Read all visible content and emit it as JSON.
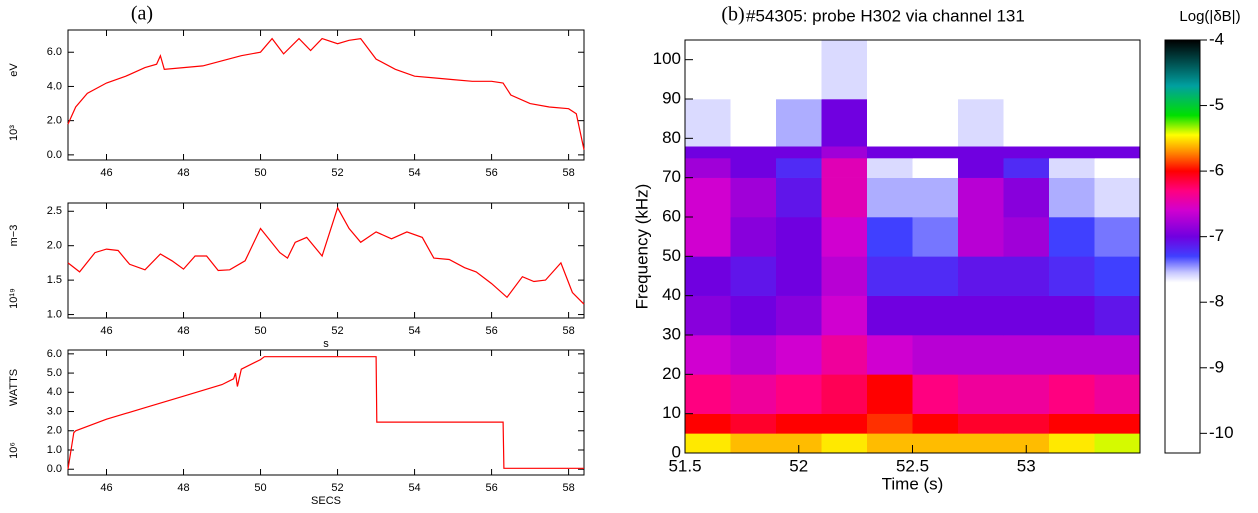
{
  "chart_data": [
    {
      "type": "line",
      "panel_label": "(a)",
      "y_scale": "10³",
      "y_label": "eV",
      "color": "#ff0000",
      "x": [
        45,
        45.2,
        45.5,
        46,
        46.5,
        47,
        47.3,
        47.4,
        47.5,
        48,
        48.5,
        49,
        49.5,
        50,
        50.3,
        50.6,
        51,
        51.3,
        51.6,
        52,
        52.3,
        52.6,
        53,
        53.5,
        54,
        54.5,
        55,
        55.5,
        56,
        56.3,
        56.5,
        57,
        57.5,
        58,
        58.2,
        58.4
      ],
      "values": [
        1.8,
        2.8,
        3.6,
        4.2,
        4.6,
        5.1,
        5.3,
        5.8,
        5.0,
        5.1,
        5.2,
        5.5,
        5.8,
        6.0,
        6.8,
        5.9,
        6.8,
        6.1,
        6.8,
        6.5,
        6.7,
        6.8,
        5.6,
        5.0,
        4.6,
        4.5,
        4.4,
        4.3,
        4.3,
        4.2,
        3.5,
        3.0,
        2.8,
        2.7,
        2.4,
        0.3
      ],
      "xlim": [
        45,
        58.4
      ],
      "xticks": [
        46,
        48,
        50,
        52,
        54,
        56,
        58
      ],
      "ylim": [
        -0.3,
        7.3
      ],
      "yticks": [
        {
          "value": 0,
          "label": "0.0"
        },
        {
          "value": 2,
          "label": "2.0"
        },
        {
          "value": 4,
          "label": "4.0"
        },
        {
          "value": 6,
          "label": "6.0"
        }
      ]
    },
    {
      "type": "line",
      "x_label": "s",
      "y_scale": "10¹⁹",
      "y_label": "m−3",
      "color": "#ff0000",
      "x": [
        45,
        45.3,
        45.7,
        46,
        46.3,
        46.6,
        47,
        47.4,
        47.7,
        48,
        48.3,
        48.6,
        48.9,
        49.2,
        49.6,
        50,
        50.5,
        50.7,
        50.9,
        51.2,
        51.6,
        52,
        52.3,
        52.6,
        53,
        53.4,
        53.8,
        54.2,
        54.5,
        54.9,
        55.3,
        55.6,
        56,
        56.4,
        56.8,
        57.1,
        57.4,
        57.8,
        58.1,
        58.4
      ],
      "values": [
        1.75,
        1.62,
        1.9,
        1.95,
        1.93,
        1.73,
        1.65,
        1.88,
        1.78,
        1.66,
        1.85,
        1.85,
        1.64,
        1.65,
        1.78,
        2.25,
        1.9,
        1.82,
        2.05,
        2.12,
        1.85,
        2.55,
        2.25,
        2.05,
        2.2,
        2.1,
        2.2,
        2.12,
        1.82,
        1.8,
        1.68,
        1.62,
        1.45,
        1.25,
        1.55,
        1.48,
        1.5,
        1.75,
        1.32,
        1.15
      ],
      "xlim": [
        45,
        58.4
      ],
      "xticks": [
        46,
        48,
        50,
        52,
        54,
        56,
        58
      ],
      "ylim": [
        0.95,
        2.62
      ],
      "yticks": [
        {
          "value": 1,
          "label": "1.0"
        },
        1.5,
        {
          "value": 2,
          "label": "2.0"
        },
        2.5
      ]
    },
    {
      "type": "line",
      "x_label": "SECS",
      "y_scale": "10⁶",
      "y_label": "WATTS",
      "color": "#ff0000",
      "x": [
        45,
        45.15,
        45.2,
        46,
        47,
        48,
        49,
        49.3,
        49.35,
        49.4,
        49.5,
        50,
        50.1,
        52,
        53,
        53.02,
        55,
        56.3,
        56.32,
        58.4
      ],
      "values": [
        0,
        1.9,
        2.0,
        2.6,
        3.2,
        3.8,
        4.4,
        4.7,
        5.0,
        4.3,
        5.2,
        5.7,
        5.85,
        5.85,
        5.85,
        2.45,
        2.45,
        2.45,
        0.05,
        0.05
      ],
      "xlim": [
        45,
        58.4
      ],
      "xticks": [
        46,
        48,
        50,
        52,
        54,
        56,
        58
      ],
      "ylim": [
        -0.3,
        6.2
      ],
      "yticks": [
        {
          "value": 0,
          "label": "0.0"
        },
        {
          "value": 1,
          "label": "1.0"
        },
        {
          "value": 2,
          "label": "2.0"
        },
        {
          "value": 3,
          "label": "3.0"
        },
        {
          "value": 4,
          "label": "4.0"
        },
        {
          "value": 5,
          "label": "5.0"
        },
        {
          "value": 6,
          "label": "6.0"
        }
      ]
    },
    {
      "type": "heatmap",
      "panel_label": "(b)",
      "title": "#54305: probe H302 via channel 131",
      "x_label": "Time (s)",
      "y_label": "Frequency (kHz)",
      "colorbar_label": "Log(|δB|)",
      "xlim": [
        51.5,
        53.5
      ],
      "xticks": [
        51.5,
        52,
        52.5,
        53
      ],
      "ylim": [
        0,
        105
      ],
      "yticks": [
        0,
        10,
        20,
        30,
        40,
        50,
        60,
        70,
        80,
        90,
        100
      ],
      "zlim": [
        -10.3,
        -4
      ],
      "zticks": [
        -10,
        -9,
        -8,
        -7,
        -6,
        -5,
        -4
      ],
      "colorscale": [
        {
          "value": -10.3,
          "color": "#ffffff"
        },
        {
          "value": -7.7,
          "color": "#ffffff"
        },
        {
          "value": -7.55,
          "color": "#c8c8ff"
        },
        {
          "value": -7.3,
          "color": "#4040ff"
        },
        {
          "value": -7.0,
          "color": "#7000e0"
        },
        {
          "value": -6.6,
          "color": "#d000d0"
        },
        {
          "value": -6.3,
          "color": "#ff0080"
        },
        {
          "value": -6.0,
          "color": "#ff0000"
        },
        {
          "value": -5.7,
          "color": "#ff9000"
        },
        {
          "value": -5.45,
          "color": "#ffff00"
        },
        {
          "value": -5.15,
          "color": "#00e000"
        },
        {
          "value": -4.7,
          "color": "#00a0a0"
        },
        {
          "value": -4.0,
          "color": "#000000"
        }
      ],
      "x_bins": [
        51.5,
        51.7,
        51.9,
        52.1,
        52.3,
        52.5,
        52.7,
        52.9,
        53.1,
        53.3,
        53.5
      ],
      "y_bins": [
        0,
        5,
        10,
        20,
        30,
        40,
        50,
        60,
        70,
        75,
        78,
        90,
        105
      ],
      "z": [
        [
          -5.5,
          -5.6,
          -5.6,
          -5.5,
          -5.6,
          -5.6,
          -5.6,
          -5.6,
          -5.5,
          -5.4
        ],
        [
          -6.0,
          -6.1,
          -6.0,
          -6.0,
          -5.9,
          -6.0,
          -6.1,
          -6.1,
          -6.0,
          -6.0
        ],
        [
          -6.3,
          -6.4,
          -6.3,
          -6.2,
          -6.0,
          -6.3,
          -6.4,
          -6.4,
          -6.3,
          -6.4
        ],
        [
          -6.6,
          -6.7,
          -6.6,
          -6.4,
          -6.6,
          -6.7,
          -6.7,
          -6.7,
          -6.7,
          -6.7
        ],
        [
          -6.9,
          -7.0,
          -6.9,
          -6.6,
          -7.0,
          -7.0,
          -7.0,
          -7.0,
          -7.0,
          -7.1
        ],
        [
          -7.0,
          -7.1,
          -7.0,
          -6.7,
          -7.2,
          -7.2,
          -7.1,
          -7.1,
          -7.2,
          -7.3
        ],
        [
          -6.6,
          -6.9,
          -7.0,
          -6.6,
          -7.3,
          -7.4,
          -6.7,
          -6.8,
          -7.3,
          -7.4
        ],
        [
          -6.6,
          -6.8,
          -7.1,
          -6.5,
          -7.5,
          -7.5,
          -6.7,
          -6.9,
          -7.5,
          -7.6
        ],
        [
          -6.8,
          -7.0,
          -7.2,
          -6.5,
          -7.6,
          -7.7,
          -7.0,
          -7.2,
          -7.6,
          -7.7
        ],
        [
          -7.0,
          -7.0,
          -7.0,
          -6.8,
          -7.0,
          -7.0,
          -7.0,
          -7.0,
          -7.0,
          -7.0
        ],
        [
          -7.6,
          -7.7,
          -7.5,
          -7.0,
          -7.9,
          -8.0,
          -7.6,
          -7.7,
          -8.0,
          -8.0
        ],
        [
          -7.8,
          -7.9,
          -7.8,
          -7.6,
          -8.1,
          -8.2,
          -7.9,
          -8.0,
          -8.2,
          -8.2
        ]
      ]
    }
  ]
}
